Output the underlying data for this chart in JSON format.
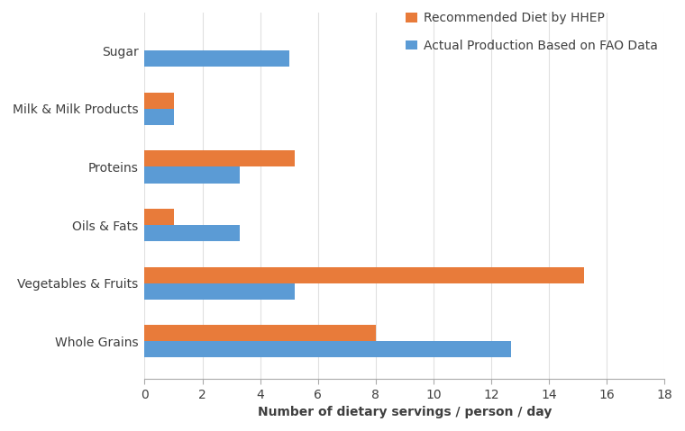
{
  "categories": [
    "Whole Grains",
    "Vegetables & Fruits",
    "Oils & Fats",
    "Proteins",
    "Milk & Milk Products",
    "Sugar"
  ],
  "recommended": [
    8.0,
    15.2,
    1.0,
    5.2,
    1.0,
    0
  ],
  "actual": [
    12.7,
    5.2,
    3.3,
    3.3,
    1.0,
    5.0
  ],
  "orange_color": "#E87B3A",
  "blue_color": "#5B9BD5",
  "legend_recommended": "Recommended Diet by HHEP",
  "legend_actual": "Actual Production Based on FAO Data",
  "xlabel": "Number of dietary servings / person / day",
  "xlim": [
    0,
    18
  ],
  "xticks": [
    0,
    2,
    4,
    6,
    8,
    10,
    12,
    14,
    16,
    18
  ],
  "bar_height": 0.28,
  "bg_color": "#FFFFFF",
  "label_fontsize": 10,
  "tick_fontsize": 10,
  "legend_fontsize": 10
}
